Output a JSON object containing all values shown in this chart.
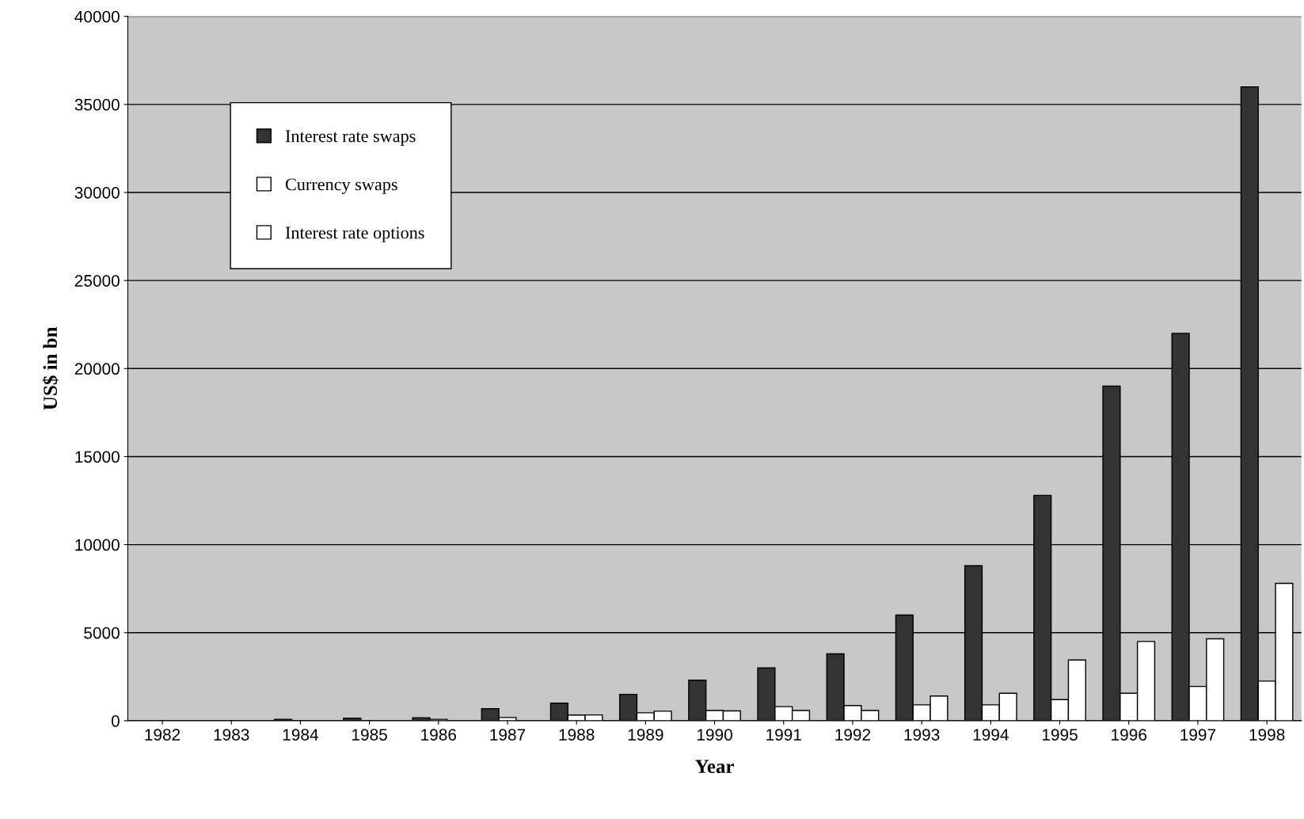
{
  "chart_data": {
    "type": "bar",
    "xlabel": "Year",
    "ylabel": "US$ in bn",
    "categories": [
      "1982",
      "1983",
      "1984",
      "1985",
      "1986",
      "1987",
      "1988",
      "1989",
      "1990",
      "1991",
      "1992",
      "1993",
      "1994",
      "1995",
      "1996",
      "1997",
      "1998"
    ],
    "series": [
      {
        "name": "Interest rate swaps",
        "color": "#333333",
        "values": [
          null,
          null,
          80,
          150,
          170,
          680,
          1000,
          1500,
          2300,
          3000,
          3800,
          6000,
          8800,
          12800,
          19000,
          22000,
          36000
        ]
      },
      {
        "name": "Currency swaps",
        "color": "#ffffff",
        "values": [
          null,
          null,
          null,
          null,
          80,
          180,
          320,
          450,
          580,
          800,
          860,
          900,
          900,
          1200,
          1560,
          1950,
          2250
        ]
      },
      {
        "name": "Interest rate options",
        "color": "#ffffff",
        "values": [
          null,
          null,
          null,
          null,
          null,
          null,
          330,
          540,
          560,
          580,
          580,
          1400,
          1560,
          3450,
          4500,
          4650,
          7800
        ]
      }
    ],
    "ylim": [
      0,
      40000
    ],
    "yticks": [
      0,
      5000,
      10000,
      15000,
      20000,
      25000,
      30000,
      35000,
      40000
    ],
    "grid": "y",
    "legend": "top left"
  }
}
